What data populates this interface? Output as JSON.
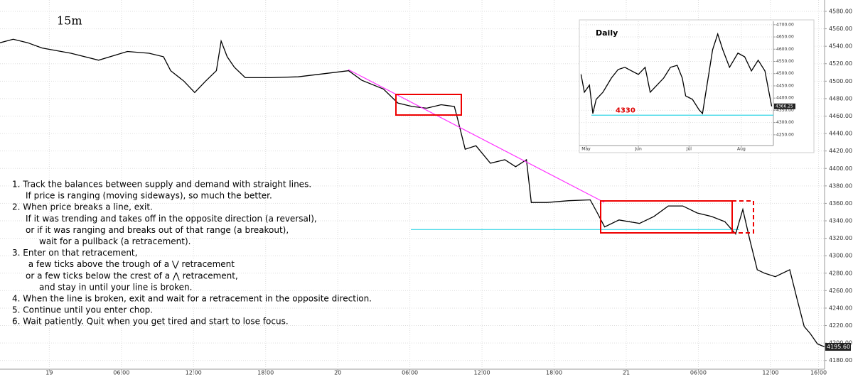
{
  "chart_data": [
    {
      "type": "line",
      "title": "15m",
      "color": "#000000",
      "grid": true,
      "x": [
        -4.1,
        -3.0,
        -1.8,
        -0.6,
        1.8,
        4.1,
        6.5,
        8.3,
        9.5,
        10.1,
        11.2,
        12.1,
        13.0,
        13.9,
        14.3,
        14.8,
        15.4,
        16.3,
        18.4,
        20.7,
        23.1,
        24.9,
        26.0,
        27.8,
        29.0,
        30.2,
        31.4,
        32.6,
        33.7,
        34.0,
        34.6,
        35.5,
        36.7,
        37.9,
        38.8,
        39.7,
        40.1,
        41.4,
        43.2,
        45.0,
        45.6,
        46.2,
        47.4,
        49.1,
        50.3,
        51.5,
        52.7,
        53.9,
        55.1,
        56.2,
        57.1,
        57.7,
        58.3,
        58.9,
        59.5,
        60.4,
        61.6,
        62.2,
        62.8,
        63.3,
        63.9,
        64.5
      ],
      "values": [
        4544,
        4548,
        4544,
        4538,
        4532,
        4524,
        4534,
        4532,
        4528,
        4512,
        4500,
        4487,
        4500,
        4512,
        4546,
        4528,
        4516,
        4504,
        4504,
        4505,
        4509,
        4512,
        4501,
        4491,
        4475,
        4471,
        4469,
        4473,
        4471,
        4455,
        4422,
        4426,
        4406,
        4410,
        4402,
        4410,
        4361,
        4361,
        4363,
        4364,
        4349,
        4333,
        4341,
        4337,
        4345,
        4357,
        4357,
        4349,
        4345,
        4339,
        4325,
        4353,
        4317,
        4284,
        4280,
        4276,
        4284,
        4251,
        4219,
        4211,
        4199,
        4195.6
      ],
      "last_label": "4195.60",
      "level": 4330,
      "xlim": [
        -4.1,
        64.5
      ],
      "xticks": [
        {
          "value": 0,
          "label": "19"
        },
        {
          "value": 6,
          "label": "06:00"
        },
        {
          "value": 12,
          "label": "12:00"
        },
        {
          "value": 18,
          "label": "18:00"
        },
        {
          "value": 24,
          "label": "20"
        },
        {
          "value": 30,
          "label": "06:00"
        },
        {
          "value": 36,
          "label": "12:00"
        },
        {
          "value": 42,
          "label": "18:00"
        },
        {
          "value": 48,
          "label": "21"
        },
        {
          "value": 54,
          "label": "06:00"
        },
        {
          "value": 60,
          "label": "12:00"
        },
        {
          "value": 64,
          "label": "16:00"
        }
      ],
      "ylim": [
        4170,
        4593
      ],
      "yticks": [
        {
          "value": 4180,
          "label": "4180.00"
        },
        {
          "value": 4200,
          "label": "4200.00"
        },
        {
          "value": 4220,
          "label": "4220.00"
        },
        {
          "value": 4240,
          "label": "4240.00"
        },
        {
          "value": 4260,
          "label": "4260.00"
        },
        {
          "value": 4280,
          "label": "4280.00"
        },
        {
          "value": 4300,
          "label": "4300.00"
        },
        {
          "value": 4320,
          "label": "4320.00"
        },
        {
          "value": 4340,
          "label": "4340.00"
        },
        {
          "value": 4360,
          "label": "4360.00"
        },
        {
          "value": 4380,
          "label": "4380.00"
        },
        {
          "value": 4400,
          "label": "4400.00"
        },
        {
          "value": 4420,
          "label": "4420.00"
        },
        {
          "value": 4440,
          "label": "4440.00"
        },
        {
          "value": 4460,
          "label": "4460.00"
        },
        {
          "value": 4480,
          "label": "4480.00"
        },
        {
          "value": 4500,
          "label": "4500.00"
        },
        {
          "value": 4520,
          "label": "4520.00"
        },
        {
          "value": 4540,
          "label": "4540.00"
        },
        {
          "value": 4560,
          "label": "4560.00"
        },
        {
          "value": 4580,
          "label": "4580.00"
        }
      ],
      "annotations": [
        "1. Track the balances between supply and demand with straight lines.",
        "If price is ranging (moving sideways), so much the better.",
        "2. When price breaks a line, exit.",
        "If it was trending and takes off in the opposite direction (a reversal),",
        "or if it was ranging and breaks out of that range (a breakout),",
        "wait for a pullback (a retracement).",
        "3. Enter on that retracement,",
        "a few ticks above the trough of a ⋁ retracement",
        "or a few ticks below the crest of a ⋀ retracement,",
        "and stay in until your line is broken.",
        "4. When the line is broken, exit and wait for a retracement in the opposite direction.",
        "5. Continue until you enter chop.",
        "6. Wait patiently. Quit when you get tired and start to lose focus."
      ]
    },
    {
      "type": "line",
      "title": "Daily",
      "color": "#000000",
      "grid": true,
      "x": [
        -3,
        -1,
        2,
        4,
        6,
        10,
        15,
        19,
        23,
        27,
        31,
        35,
        38,
        42,
        46,
        50,
        54,
        57,
        59,
        63,
        67,
        69,
        71,
        73,
        75,
        78,
        81,
        85,
        90,
        94,
        98,
        102,
        106,
        110
      ],
      "values": [
        4497,
        4424,
        4453,
        4337,
        4395,
        4424,
        4482,
        4517,
        4526,
        4511,
        4497,
        4526,
        4424,
        4453,
        4482,
        4526,
        4534,
        4482,
        4409,
        4395,
        4352,
        4337,
        4424,
        4511,
        4598,
        4662,
        4598,
        4526,
        4584,
        4569,
        4511,
        4555,
        4511,
        4366.25
      ],
      "last_label": "4366.25",
      "level": 4330,
      "xlim": [
        -4,
        111
      ],
      "xticks": [
        {
          "value": 0,
          "label": "May"
        },
        {
          "value": 31,
          "label": "Jun"
        },
        {
          "value": 61,
          "label": "Jul"
        },
        {
          "value": 92,
          "label": "Aug"
        }
      ],
      "ylim": [
        4206,
        4714
      ],
      "yticks": [
        {
          "value": 4250,
          "label": "4250.00"
        },
        {
          "value": 4300,
          "label": "4300.00"
        },
        {
          "value": 4350,
          "label": "4350.00"
        },
        {
          "value": 4400,
          "label": "4400.00"
        },
        {
          "value": 4450,
          "label": "4450.00"
        },
        {
          "value": 4500,
          "label": "4500.00"
        },
        {
          "value": 4550,
          "label": "4550.00"
        },
        {
          "value": 4600,
          "label": "4600.00"
        },
        {
          "value": 4650,
          "label": "4650.00"
        },
        {
          "value": 4700,
          "label": "4700.00"
        }
      ]
    }
  ]
}
